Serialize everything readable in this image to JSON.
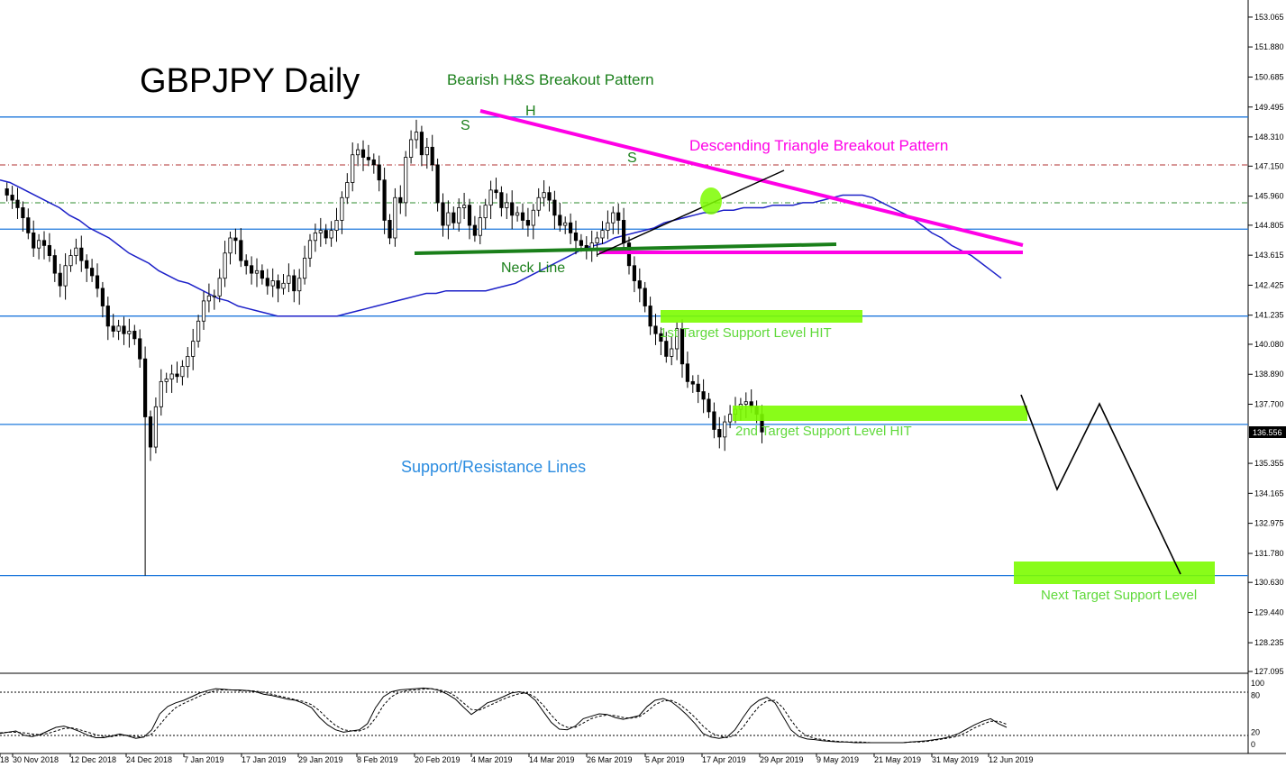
{
  "chart_data": {
    "type": "candlestick",
    "title": "GBPJPY Daily",
    "current_price": "136.556",
    "price_axis": {
      "range": [
        127.095,
        153.6
      ],
      "ticks": [
        "153.065",
        "151.880",
        "150.685",
        "149.495",
        "148.310",
        "147.150",
        "145.960",
        "144.805",
        "143.615",
        "142.425",
        "141.235",
        "140.080",
        "138.890",
        "137.700",
        "136.556",
        "135.355",
        "134.165",
        "132.975",
        "131.780",
        "130.630",
        "129.440",
        "128.235",
        "127.095"
      ]
    },
    "date_axis": {
      "labels": [
        "18",
        "30 Nov 2018",
        "12 Dec 2018",
        "24 Dec 2018",
        "7 Jan 2019",
        "17 Jan 2019",
        "29 Jan 2019",
        "8 Feb 2019",
        "20 Feb 2019",
        "4 Mar 2019",
        "14 Mar 2019",
        "26 Mar 2019",
        "5 Apr 2019",
        "17 Apr 2019",
        "29 Apr 2019",
        "9 May 2019",
        "21 May 2019",
        "31 May 2019",
        "12 Jun 2019"
      ]
    },
    "moving_average_color": "#1c20c8",
    "candle_close": [
      146.0,
      145.8,
      145.5,
      145.1,
      144.5,
      143.9,
      144.2,
      144.0,
      143.6,
      142.9,
      142.4,
      143.2,
      143.6,
      143.9,
      143.4,
      143.1,
      142.8,
      142.3,
      141.6,
      140.8,
      140.6,
      140.8,
      140.5,
      140.6,
      140.3,
      139.5,
      137.2,
      136.0,
      137.6,
      138.6,
      138.7,
      138.9,
      138.8,
      139.2,
      139.6,
      140.2,
      141.0,
      141.8,
      142.0,
      142.0,
      142.7,
      143.7,
      144.3,
      144.2,
      143.4,
      143.2,
      142.9,
      143.0,
      142.7,
      142.4,
      142.6,
      142.3,
      142.5,
      142.8,
      142.2,
      142.7,
      143.5,
      144.2,
      144.5,
      144.6,
      144.3,
      144.6,
      145.0,
      145.9,
      146.5,
      147.6,
      147.8,
      147.5,
      147.4,
      147.2,
      146.6,
      145.0,
      144.3,
      145.9,
      145.7,
      147.5,
      148.2,
      148.5,
      147.6,
      147.9,
      147.2,
      145.7,
      144.8,
      145.3,
      144.9,
      145.5,
      145.6,
      144.8,
      144.4,
      145.1,
      145.6,
      146.2,
      146.1,
      145.5,
      145.7,
      145.2,
      145.3,
      145.0,
      144.8,
      145.4,
      145.9,
      146.1,
      145.8,
      145.2,
      144.8,
      144.9,
      144.5,
      144.2,
      144.0,
      143.8,
      144.1,
      144.3,
      144.6,
      144.9,
      145.3,
      145.0,
      144.1,
      143.2,
      142.6,
      142.3,
      141.6,
      140.8,
      140.5,
      140.2,
      139.6,
      139.9,
      140.7,
      139.3,
      138.6,
      138.5,
      138.2,
      137.9,
      137.4,
      136.7,
      136.4,
      137.0,
      137.3,
      137.5,
      137.7,
      137.8,
      137.6,
      137.3,
      136.6
    ],
    "moving_average": [
      146.6,
      146.5,
      146.3,
      146.1,
      145.9,
      145.7,
      145.5,
      145.2,
      145.0,
      144.7,
      144.5,
      144.3,
      144.0,
      143.7,
      143.5,
      143.3,
      143.0,
      142.8,
      142.6,
      142.5,
      142.3,
      142.1,
      141.9,
      141.8,
      141.6,
      141.5,
      141.4,
      141.3,
      141.2,
      141.2,
      141.2,
      141.2,
      141.2,
      141.2,
      141.2,
      141.3,
      141.4,
      141.5,
      141.6,
      141.7,
      141.8,
      141.9,
      142.0,
      142.1,
      142.1,
      142.2,
      142.2,
      142.2,
      142.2,
      142.2,
      142.3,
      142.4,
      142.5,
      142.7,
      142.9,
      143.1,
      143.3,
      143.5,
      143.7,
      143.9,
      144.0,
      144.1,
      144.3,
      144.4,
      144.5,
      144.6,
      144.7,
      144.9,
      145.0,
      145.1,
      145.2,
      145.3,
      145.3,
      145.4,
      145.4,
      145.5,
      145.5,
      145.5,
      145.6,
      145.6,
      145.6,
      145.7,
      145.7,
      145.8,
      145.9,
      146.0,
      146.0,
      146.0,
      145.9,
      145.7,
      145.5,
      145.3,
      145.1,
      144.8,
      144.5,
      144.3,
      144.0,
      143.8,
      143.6,
      143.3,
      143.0,
      142.7
    ]
  },
  "horizontal_levels": [
    149.1,
    144.65,
    141.2,
    136.9,
    130.9
  ],
  "annotations": {
    "title": "GBPJPY Daily",
    "hs_pattern": "Bearish H&S Breakout Pattern",
    "shoulder_left": "S",
    "head": "H",
    "shoulder_right": "S",
    "triangle_pattern": "Descending Triangle Breakout Pattern",
    "neck_line": "Neck Line",
    "target1": "1st Target Support Level HIT",
    "target2": "2nd Target Support Level HIT",
    "sr_lines": "Support/Resistance Lines",
    "next_target": "Next Target Support Level"
  },
  "oscillator": {
    "labels": [
      "100",
      "80",
      "20",
      "0"
    ],
    "main": [
      18,
      20,
      22,
      15,
      13,
      16,
      22,
      28,
      30,
      26,
      21,
      15,
      11,
      11,
      14,
      17,
      14,
      10,
      12,
      24,
      50,
      62,
      68,
      72,
      78,
      84,
      88,
      91,
      90,
      89,
      89,
      88,
      86,
      82,
      80,
      77,
      74,
      72,
      67,
      60,
      44,
      32,
      24,
      20,
      22,
      24,
      34,
      60,
      78,
      86,
      89,
      90,
      91,
      92,
      91,
      88,
      82,
      74,
      61,
      49,
      58,
      68,
      72,
      78,
      84,
      86,
      83,
      72,
      54,
      36,
      25,
      24,
      30,
      42,
      46,
      50,
      49,
      44,
      41,
      44,
      47,
      62,
      72,
      75,
      70,
      60,
      48,
      34,
      18,
      12,
      10,
      12,
      24,
      44,
      62,
      72,
      77,
      68,
      46,
      24,
      13,
      9,
      8,
      6,
      5,
      4,
      4,
      3,
      3,
      3,
      3,
      3,
      3,
      3,
      4,
      5,
      6,
      8,
      10,
      13,
      18,
      25,
      32,
      38,
      42,
      34,
      28
    ],
    "signal": [
      19,
      20,
      20,
      19,
      17,
      16,
      18,
      22,
      26,
      27,
      24,
      20,
      16,
      13,
      13,
      15,
      15,
      13,
      12,
      17,
      32,
      48,
      60,
      67,
      73,
      79,
      84,
      88,
      89,
      89,
      88,
      88,
      87,
      85,
      82,
      79,
      76,
      73,
      70,
      65,
      55,
      42,
      31,
      24,
      22,
      22,
      27,
      43,
      64,
      78,
      85,
      88,
      89,
      90,
      91,
      89,
      86,
      79,
      68,
      57,
      56,
      62,
      68,
      74,
      79,
      83,
      84,
      77,
      64,
      48,
      34,
      28,
      28,
      35,
      42,
      46,
      48,
      47,
      44,
      43,
      45,
      54,
      65,
      71,
      72,
      66,
      56,
      44,
      30,
      19,
      14,
      11,
      15,
      28,
      46,
      62,
      71,
      72,
      60,
      40,
      23,
      14,
      10,
      8,
      6,
      5,
      4,
      4,
      4,
      3,
      3,
      3,
      3,
      3,
      4,
      4,
      5,
      7,
      9,
      11,
      14,
      20,
      27,
      33,
      38,
      38,
      33
    ]
  },
  "colors": {
    "support_line": "#1e78dc",
    "pink": "#ff00e6",
    "green_dark": "#1a7f1a",
    "green_light": "#7cfc00",
    "green_text": "#5fd93a",
    "sr_text": "#2b8ce0"
  }
}
